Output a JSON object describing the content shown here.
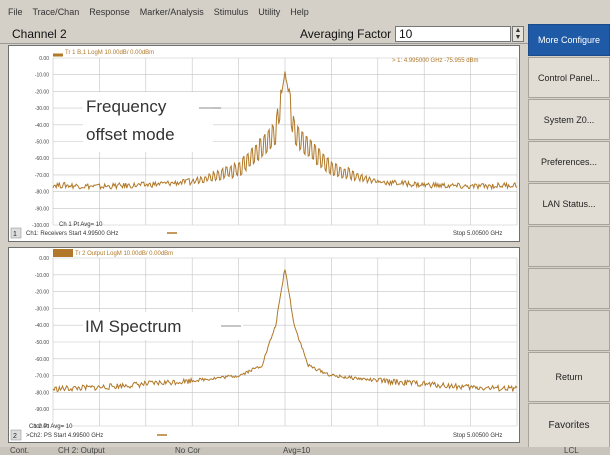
{
  "menu": [
    "File",
    "Trace/Chan",
    "Response",
    "Marker/Analysis",
    "Stimulus",
    "Utility",
    "Help"
  ],
  "channel_title": "Channel 2",
  "averaging": {
    "label": "Averaging Factor",
    "value": "10"
  },
  "sidebar": [
    {
      "label": "More Configure",
      "active": true
    },
    {
      "label": "Control Panel...",
      "active": false
    },
    {
      "label": "System Z0...",
      "active": false
    },
    {
      "label": "Preferences...",
      "active": false
    },
    {
      "label": "LAN Status...",
      "active": false
    },
    {
      "label": "",
      "active": false
    },
    {
      "label": "",
      "active": false
    },
    {
      "label": "",
      "active": false
    },
    {
      "label": "Return",
      "active": false
    },
    {
      "label": "Favorites",
      "active": false
    }
  ],
  "colors": {
    "trace": "#b07828",
    "grid": "#c4c4c4",
    "accent": "#1f5aa6"
  },
  "panel1": {
    "header": "Tr 1  B,1 LogM 10.00dB/  0.00dBm",
    "marker": "> 1:    4.995000 GHz   -75.955 dBm",
    "annotation_line1": "Frequency",
    "annotation_line2": "offset mode",
    "avg": "Ch 1 Pt Avg= 10",
    "footer_start": "Ch1: Receivers  Start  4.99500 GHz",
    "footer_stop": "Stop  5.00500 GHz",
    "index": "1",
    "y_ticks": [
      "0.00",
      "-10.00",
      "-20.00",
      "-30.00",
      "-40.00",
      "-50.00",
      "-60.00",
      "-70.00",
      "-80.00",
      "-90.00",
      "-100.00"
    ]
  },
  "panel2": {
    "header": "Tr 2  Output LogM 10.00dB/  0.00dBm",
    "annotation": "IM Spectrum",
    "avg": "Ch 2 Pt Avg= 10",
    "footer_start": ">Ch2: PS  Start  4.99500 GHz",
    "footer_stop": "Stop  5.00500 GHz",
    "index": "2",
    "y_ticks": [
      "0.00",
      "-10.00",
      "-20.00",
      "-30.00",
      "-40.00",
      "-50.00",
      "-60.00",
      "-70.00",
      "-80.00",
      "-90.00",
      "-100.00"
    ]
  },
  "status": [
    "Cont.",
    "CH 2: Output",
    "No Cor",
    "Avg=10",
    "LCL"
  ],
  "chart_data": [
    {
      "type": "line",
      "title": "",
      "xlabel": "",
      "ylabel": "",
      "xlim": [
        4.995,
        5.005
      ],
      "ylim": [
        -100,
        0
      ],
      "grid": true,
      "x_unit": "GHz",
      "y_unit": "dBm",
      "series": [
        {
          "x": [
            4.995,
            4.996,
            4.997,
            4.998,
            4.9985,
            4.999,
            4.9993,
            4.9996,
            4.9998,
            5.0,
            5.0002,
            5.0004,
            5.0007,
            5.001,
            5.0015,
            5.002,
            5.003,
            5.004,
            5.005
          ],
          "y": [
            -76,
            -77,
            -76,
            -74,
            -70,
            -66,
            -58,
            -50,
            -44,
            -8,
            -44,
            -50,
            -58,
            -66,
            -70,
            -74,
            -76,
            -77,
            -76
          ]
        }
      ]
    },
    {
      "type": "line",
      "title": "",
      "xlabel": "",
      "ylabel": "",
      "xlim": [
        4.995,
        5.005
      ],
      "ylim": [
        -100,
        0
      ],
      "grid": true,
      "x_unit": "GHz",
      "y_unit": "dBm",
      "series": [
        {
          "x": [
            4.995,
            4.996,
            4.997,
            4.998,
            4.999,
            4.9995,
            4.9998,
            5.0,
            5.0002,
            5.0005,
            5.001,
            5.002,
            5.003,
            5.004,
            5.005
          ],
          "y": [
            -78,
            -77,
            -75,
            -73,
            -70,
            -64,
            -40,
            -6,
            -40,
            -64,
            -70,
            -73,
            -75,
            -77,
            -78
          ]
        }
      ]
    }
  ]
}
